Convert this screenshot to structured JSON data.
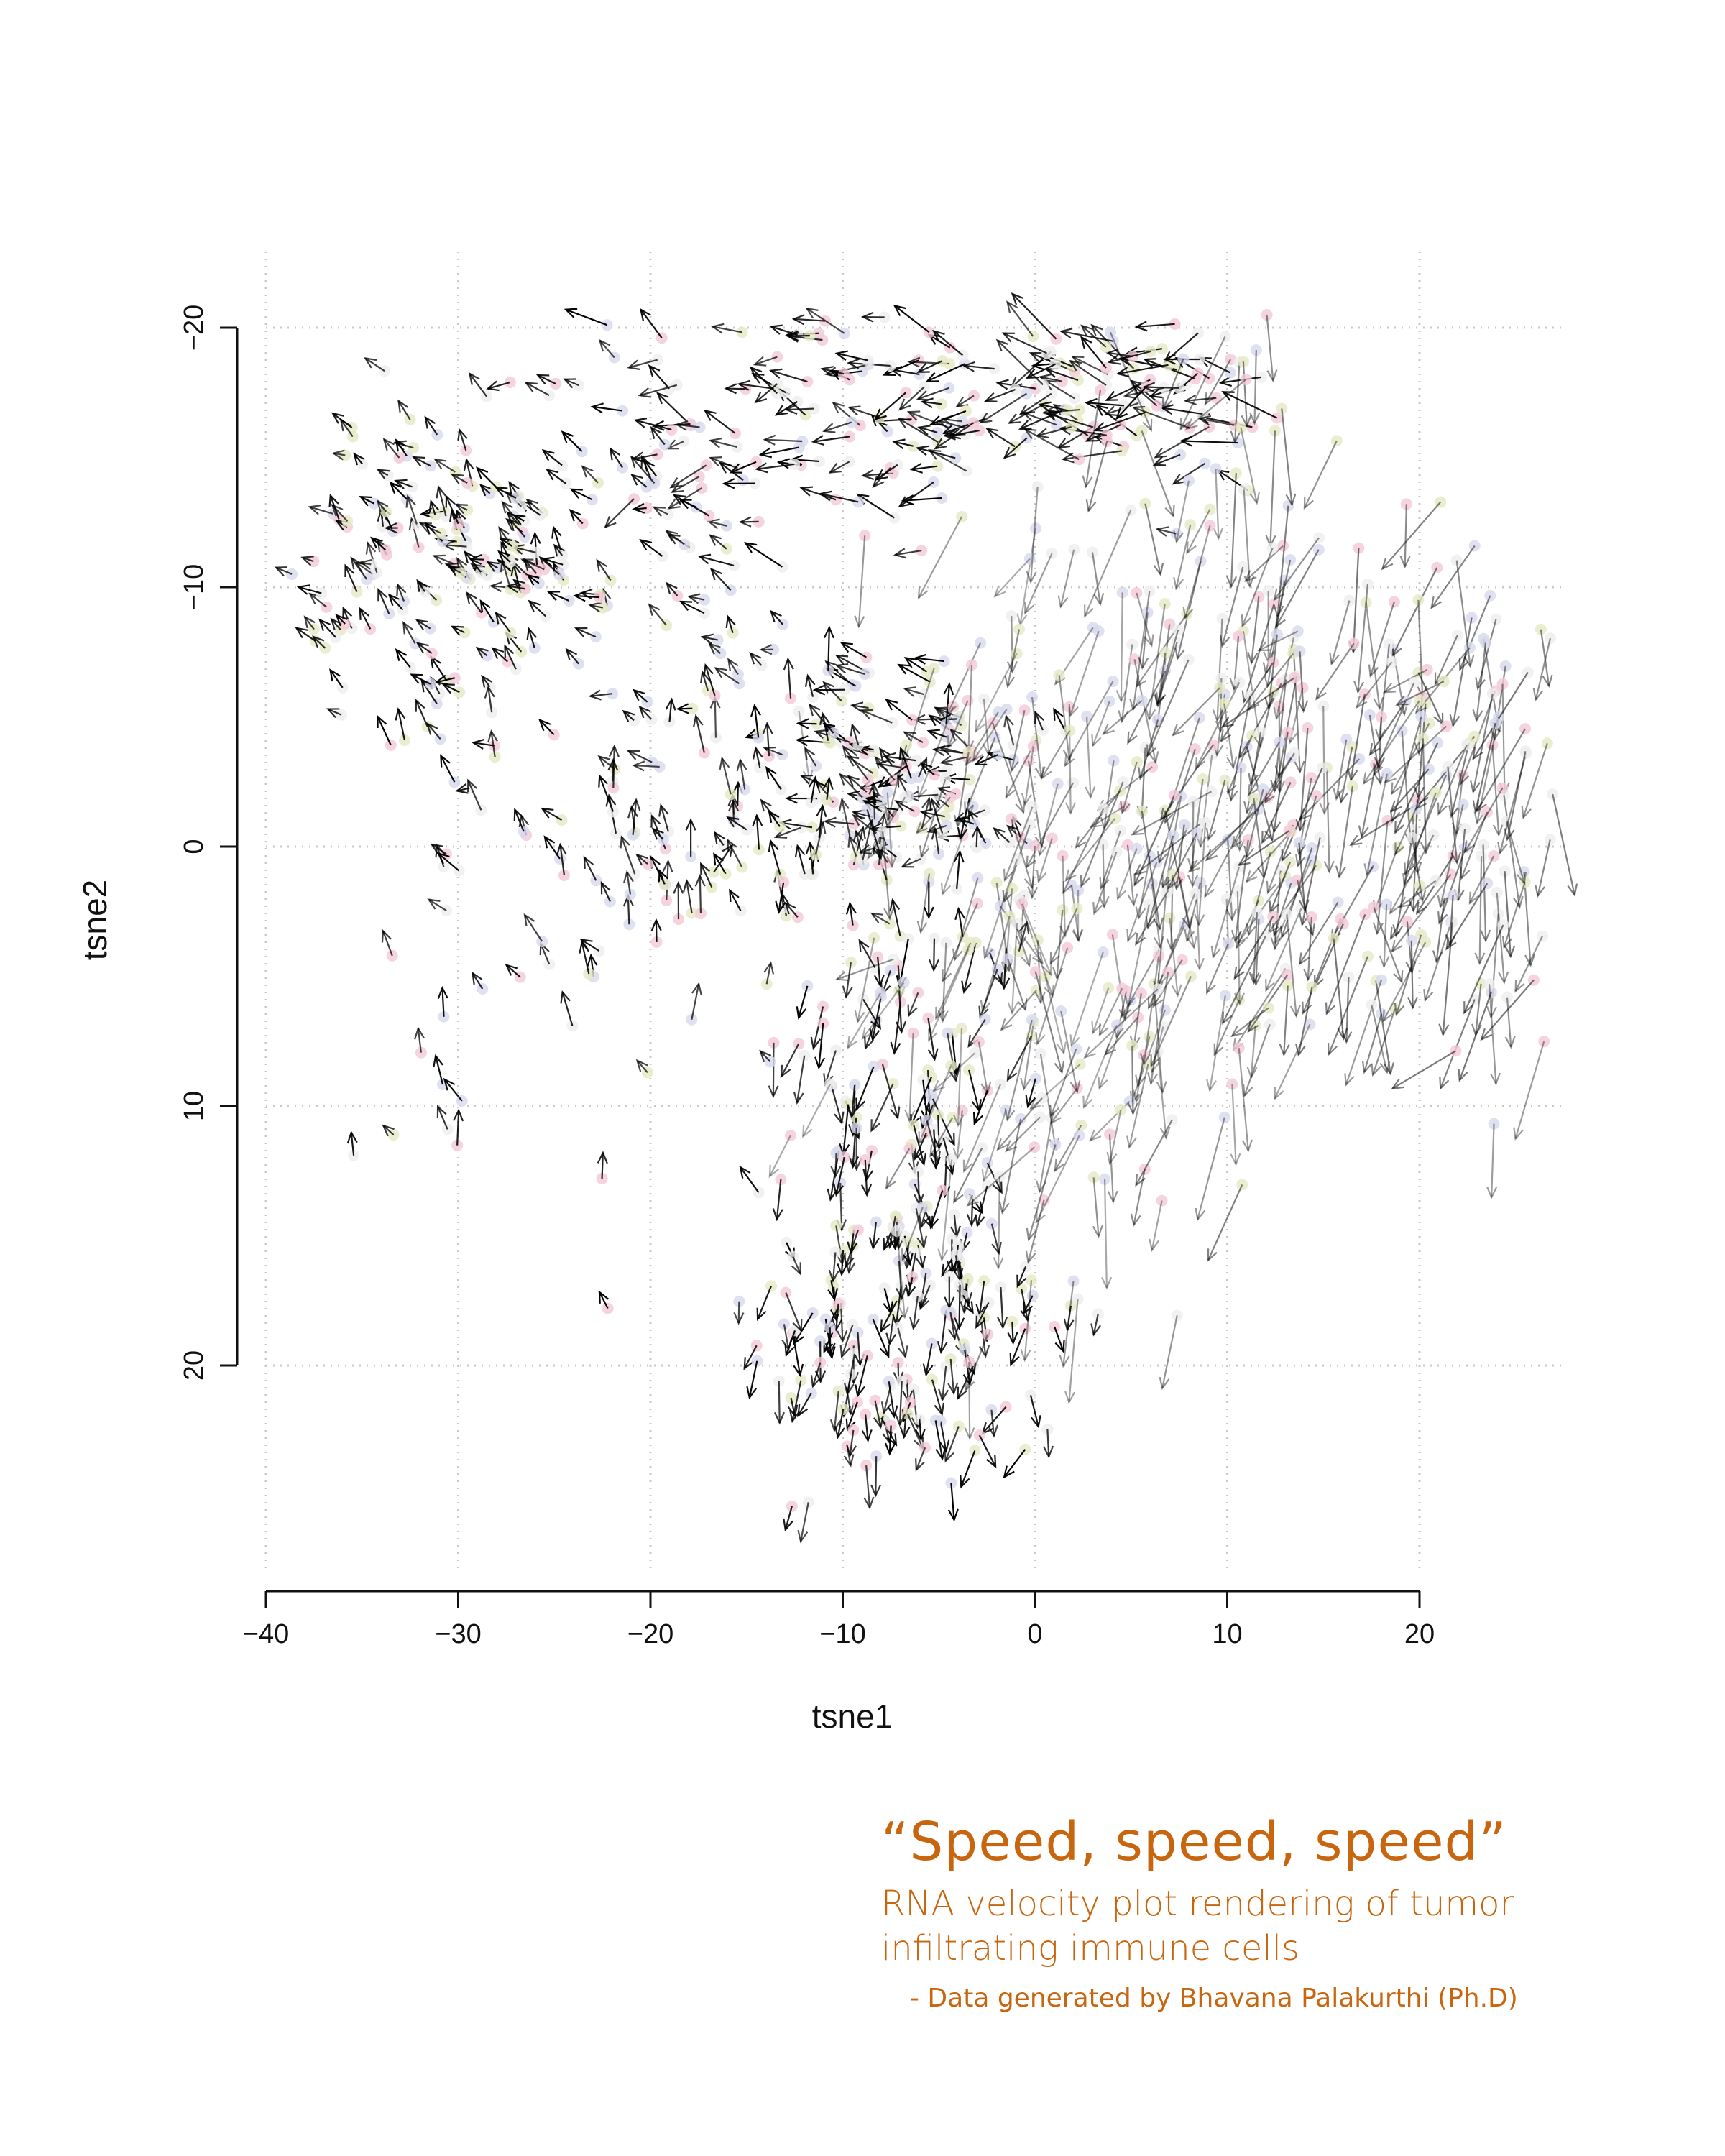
{
  "chart_data": {
    "type": "scatter",
    "variant": "rna-velocity-arrow-field",
    "title": "",
    "xlabel": "tsne1",
    "ylabel": "tsne2",
    "xlim": [
      -40,
      28
    ],
    "ylim": [
      -26,
      21
    ],
    "x_ticks": [
      "−40",
      "−30",
      "−20",
      "−10",
      "0",
      "10",
      "20"
    ],
    "y_ticks": [
      "−20",
      "−10",
      "0",
      "10",
      "20"
    ],
    "grid": true,
    "grid_style": "dotted",
    "arrow_color": "#000000",
    "point_colors": [
      "#f3c9d8",
      "#e6e9c6",
      "#d7d9ec",
      "#eeeeee"
    ],
    "clusters": [
      {
        "name": "",
        "center": [
          -31,
          11
        ],
        "spread": [
          4,
          2.5
        ],
        "n": 130,
        "dir": [
          -0.35,
          0.3
        ],
        "len": 0.9,
        "fade": 1.0
      },
      {
        "name": "",
        "center": [
          -22,
          9
        ],
        "spread": [
          5,
          5
        ],
        "n": 70,
        "dir": [
          -0.45,
          0.25
        ],
        "len": 1.0,
        "fade": 1.0
      },
      {
        "name": "",
        "center": [
          -10,
          17
        ],
        "spread": [
          7,
          2.5
        ],
        "n": 110,
        "dir": [
          -1,
          0.05
        ],
        "len": 1.6,
        "fade": 1.0
      },
      {
        "name": "",
        "center": [
          4,
          17.5
        ],
        "spread": [
          4,
          1.2
        ],
        "n": 70,
        "dir": [
          -1,
          0
        ],
        "len": 2.2,
        "fade": 0.95
      },
      {
        "name": "",
        "center": [
          -7,
          3
        ],
        "spread": [
          3,
          2
        ],
        "n": 80,
        "dir": [
          -0.9,
          0.25
        ],
        "len": 1.3,
        "fade": 1.0
      },
      {
        "name": "",
        "center": [
          -13,
          0
        ],
        "spread": [
          6,
          3
        ],
        "n": 90,
        "dir": [
          -0.25,
          0.9
        ],
        "len": 1.2,
        "fade": 1.0
      },
      {
        "name": "",
        "center": [
          -8,
          -7
        ],
        "spread": [
          3,
          3
        ],
        "n": 60,
        "dir": [
          -0.1,
          -1
        ],
        "len": 1.6,
        "fade": 1.0
      },
      {
        "name": "",
        "center": [
          -7,
          -18
        ],
        "spread": [
          4,
          3.5
        ],
        "n": 150,
        "dir": [
          -0.05,
          -1
        ],
        "len": 1.2,
        "fade": 1.0
      },
      {
        "name": "",
        "center": [
          1,
          -3
        ],
        "spread": [
          5,
          7
        ],
        "n": 160,
        "dir": [
          -0.3,
          -1
        ],
        "len": 3.0,
        "fade": 0.45
      },
      {
        "name": "",
        "center": [
          9,
          5
        ],
        "spread": [
          4,
          8
        ],
        "n": 150,
        "dir": [
          -0.35,
          -1
        ],
        "len": 3.4,
        "fade": 0.5
      },
      {
        "name": "",
        "center": [
          20,
          2
        ],
        "spread": [
          5,
          5
        ],
        "n": 170,
        "dir": [
          -0.35,
          -1
        ],
        "len": 3.2,
        "fade": 0.55
      },
      {
        "name": "",
        "center": [
          -27,
          -5
        ],
        "spread": [
          6,
          5
        ],
        "n": 40,
        "dir": [
          -0.4,
          0.6
        ],
        "len": 1.0,
        "fade": 1.0
      }
    ]
  },
  "caption": {
    "quote": "“Speed, speed, speed”",
    "subtitle_line1": "RNA velocity plot rendering of tumor",
    "subtitle_line2": "infiltrating immune cells",
    "credit": "- Data generated by Bhavana Palakurthi (Ph.D)"
  }
}
